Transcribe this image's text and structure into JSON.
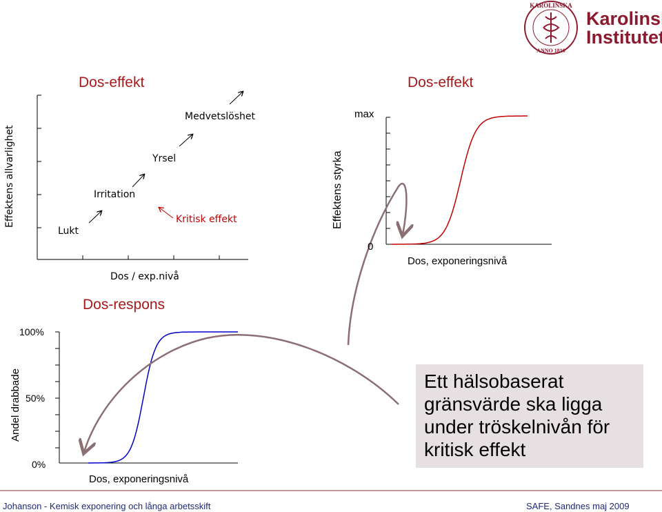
{
  "logo": {
    "seal_text": "KAROLINSKA INSTITUTET ANNO 1810",
    "line1": "Karolinska",
    "line2": "Institutet"
  },
  "left_chart": {
    "title": "Dos-effekt",
    "ylabel": "Effektens allvarlighet",
    "xlabel": "Dos / exp.nivå",
    "labels": [
      "Lukt",
      "Irritation",
      "Yrsel",
      "Medvetslöshet"
    ],
    "critical_label": "Kritisk effekt"
  },
  "right_chart": {
    "title": "Dos-effekt",
    "ylabel": "Effektens styrka",
    "ymax_label": "max",
    "yzero_label": "0",
    "xlabel": "Dos, exponeringsnivå",
    "colors": {
      "curve": "#c00000",
      "arrow": "#8b6f74"
    }
  },
  "bottom_chart": {
    "title": "Dos-respons",
    "ylabel": "Andel drabbade",
    "ticks": [
      "100%",
      "50%",
      "0%"
    ],
    "xlabel": "Dos, exponeringsnivå",
    "colors": {
      "curve": "#0000c8"
    }
  },
  "callout": {
    "text": "Ett hälsobaserat gränsvärde ska ligga under tröskelnivån för kritisk effekt"
  },
  "footer": {
    "left": "Johanson - Kemisk exponering och långa arbetsskift",
    "right": "SAFE, Sandnes maj 2009"
  }
}
